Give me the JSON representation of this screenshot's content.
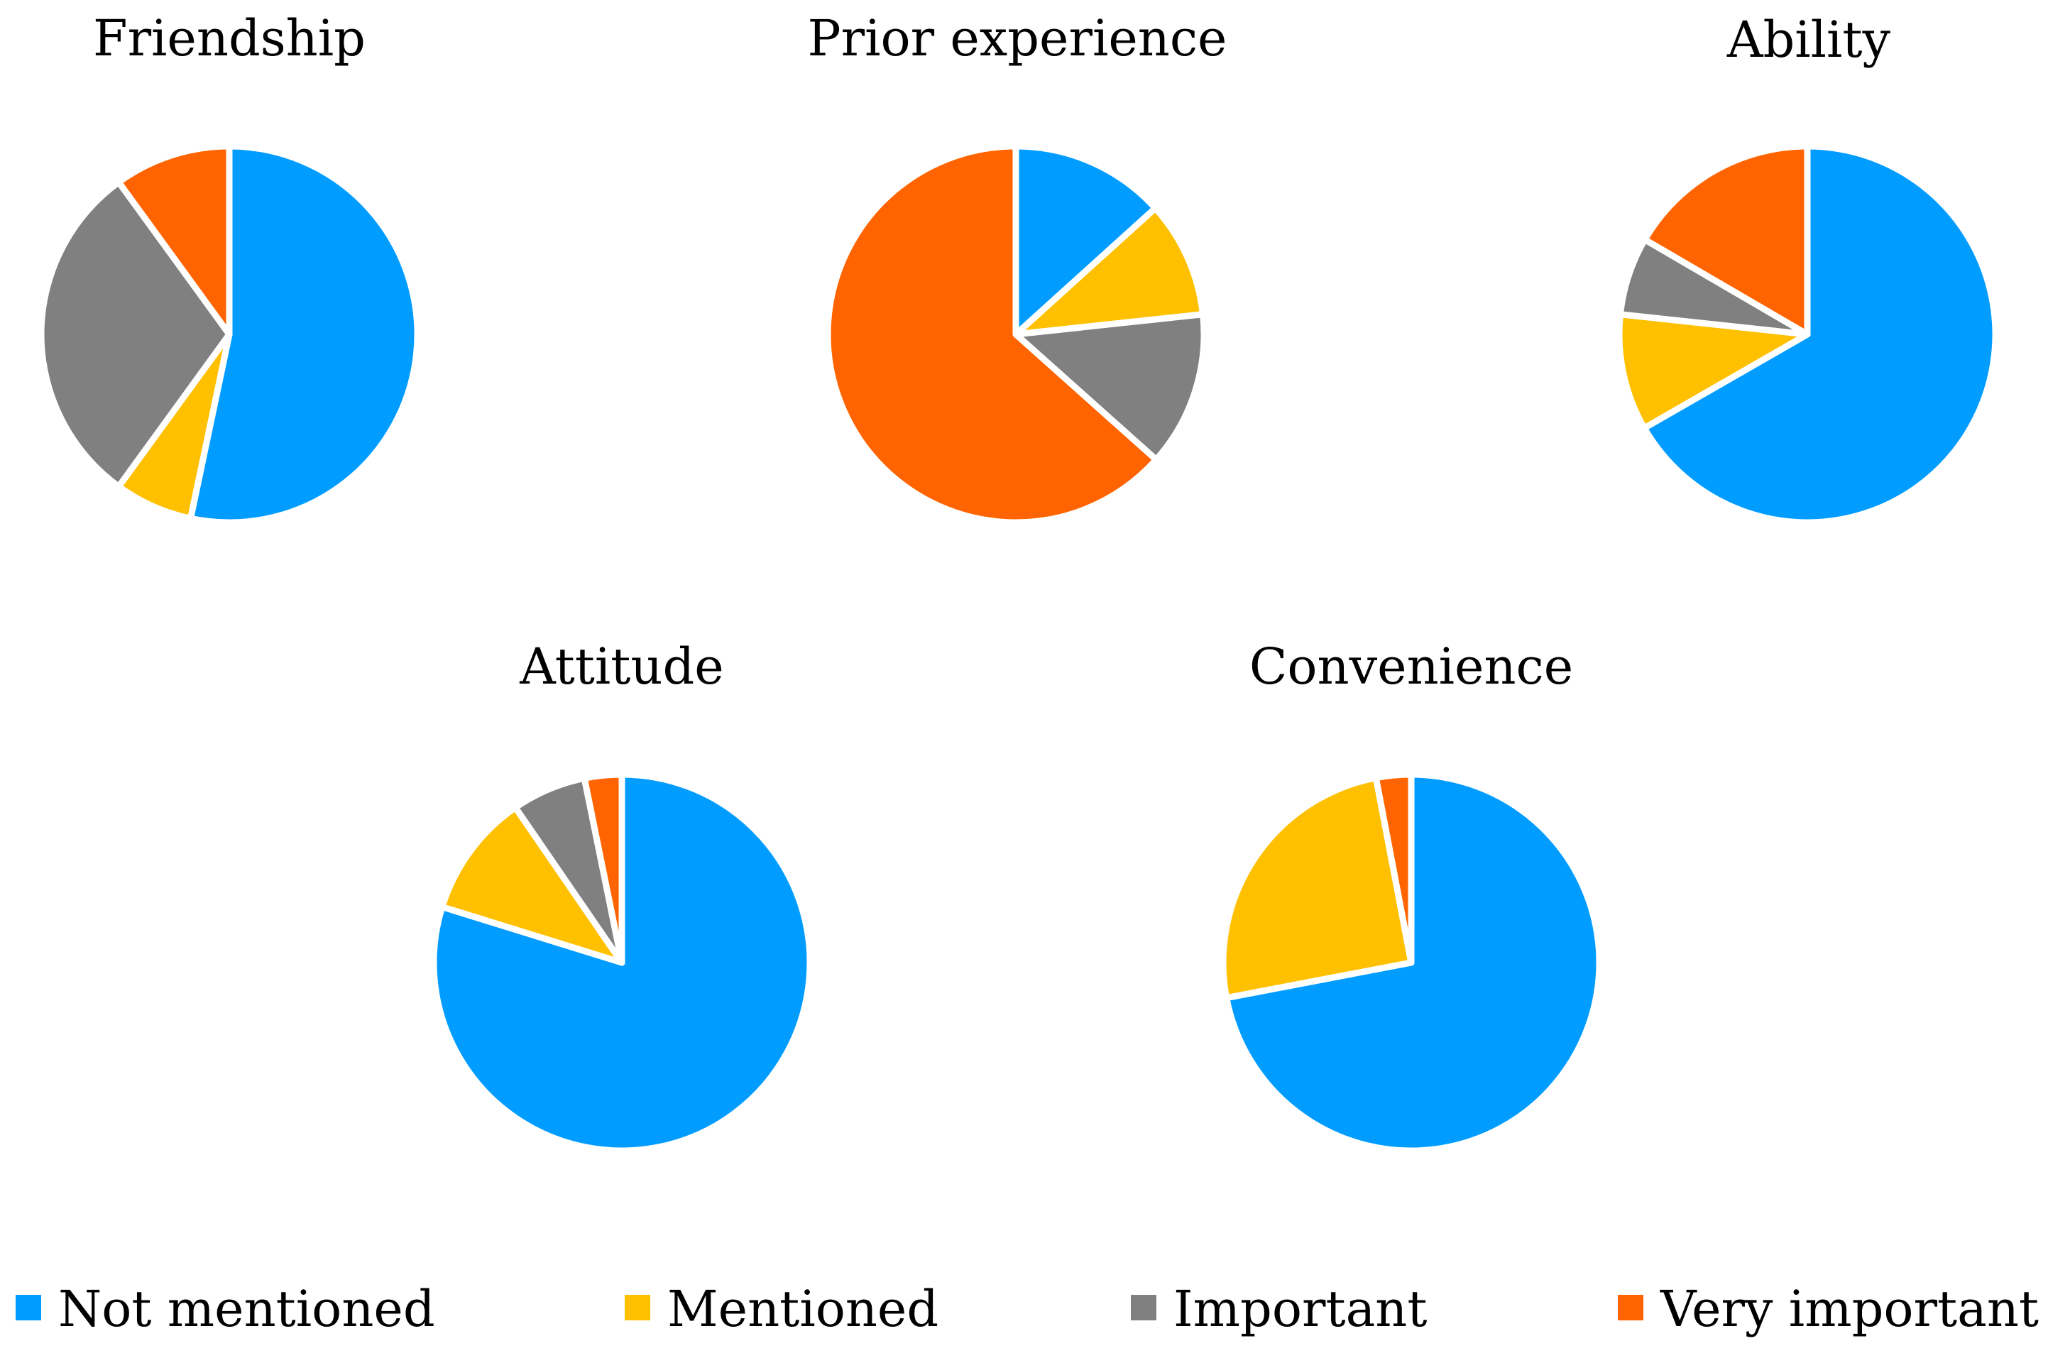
{
  "chart_data": [
    {
      "type": "pie",
      "title": "Friendship",
      "labels": [
        "Not mentioned",
        "Mentioned",
        "Important",
        "Very important"
      ],
      "values": [
        53.3,
        6.7,
        30.0,
        10.0
      ]
    },
    {
      "type": "pie",
      "title": "Prior experience",
      "labels": [
        "Not mentioned",
        "Mentioned",
        "Important",
        "Very important"
      ],
      "values": [
        13.3,
        10.0,
        13.3,
        63.4
      ]
    },
    {
      "type": "pie",
      "title": "Ability",
      "labels": [
        "Not mentioned",
        "Mentioned",
        "Important",
        "Very important"
      ],
      "values": [
        66.7,
        10.0,
        6.7,
        16.6
      ]
    },
    {
      "type": "pie",
      "title": "Attitude",
      "labels": [
        "Not mentioned",
        "Mentioned",
        "Important",
        "Very important"
      ],
      "values": [
        75.0,
        10.0,
        6.0,
        3.0
      ]
    },
    {
      "type": "pie",
      "title": "Convenience",
      "labels": [
        "Not mentioned",
        "Mentioned",
        "Important",
        "Very important"
      ],
      "values": [
        72.0,
        25.0,
        0.0,
        3.0
      ]
    }
  ],
  "legend": [
    {
      "label": "Not mentioned",
      "color": "#009cff"
    },
    {
      "label": "Mentioned",
      "color": "#ffc000"
    },
    {
      "label": "Important",
      "color": "#808080"
    },
    {
      "label": "Very important",
      "color": "#ff6400"
    }
  ]
}
